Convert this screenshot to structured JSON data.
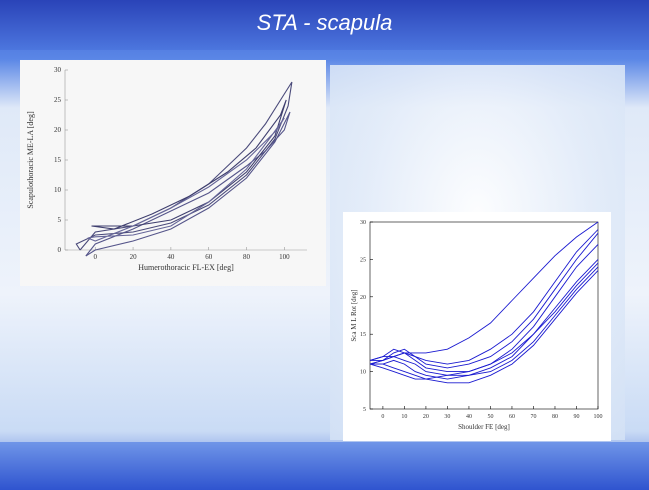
{
  "slide": {
    "title": "STA - scapula"
  },
  "chart_data": [
    {
      "type": "line",
      "x_label": "Humerothoracic FL-EX [deg]",
      "y_label": "Scapulothoracic ME-LA [deg]",
      "xlim": [
        -16,
        112
      ],
      "ylim": [
        0,
        30
      ],
      "xticks": [
        0,
        20,
        40,
        60,
        80,
        100
      ],
      "yticks": [
        0,
        5,
        10,
        15,
        20,
        25,
        30
      ],
      "series": [
        {
          "color": "#4a4a7a",
          "x": [
            -8,
            -10,
            0,
            20,
            40,
            60,
            80,
            95,
            102,
            104,
            100,
            90,
            80,
            60,
            40,
            20,
            0,
            -8
          ],
          "values": [
            0,
            1,
            2.5,
            3,
            4.5,
            7.5,
            12.5,
            18.5,
            24,
            28,
            26,
            21,
            17,
            11,
            7,
            4,
            3,
            0
          ]
        },
        {
          "color": "#55558a",
          "x": [
            -5,
            0,
            20,
            40,
            60,
            80,
            95,
            103,
            100,
            90,
            80,
            60,
            40,
            20,
            0,
            -5
          ],
          "values": [
            -1,
            0,
            1.5,
            3.5,
            7,
            12,
            18,
            23,
            20,
            16.5,
            14,
            9.5,
            6.5,
            3.5,
            1,
            -1
          ]
        },
        {
          "color": "#3e3e6e",
          "x": [
            -2,
            0,
            20,
            40,
            60,
            80,
            95,
            101,
            98,
            85,
            70,
            50,
            30,
            10,
            -2
          ],
          "values": [
            4,
            4,
            4,
            5,
            8,
            13,
            19,
            25,
            22.5,
            17,
            13,
            9,
            6,
            3.5,
            4
          ]
        },
        {
          "color": "#666699",
          "x": [
            -4,
            0,
            20,
            40,
            60,
            80,
            92,
            100,
            96,
            80,
            60,
            40,
            20,
            0,
            -4
          ],
          "values": [
            2,
            2.2,
            2.5,
            4,
            8,
            13.5,
            18.5,
            22,
            20,
            15,
            10.5,
            7,
            4,
            1.5,
            2
          ]
        }
      ]
    },
    {
      "type": "line",
      "x_label": "Shoulder FE [deg]",
      "y_label": "Sca M L Rot [deg]",
      "xlim": [
        -6,
        100
      ],
      "ylim": [
        5,
        30
      ],
      "xticks": [
        0,
        10,
        20,
        30,
        40,
        50,
        60,
        70,
        80,
        90,
        100
      ],
      "yticks": [
        5,
        10,
        15,
        20,
        25,
        30
      ],
      "series": [
        {
          "color": "#1a1ad0",
          "x": [
            -6,
            0,
            5,
            10,
            15,
            20,
            30,
            40,
            50,
            60,
            70,
            80,
            90,
            100
          ],
          "values": [
            11,
            11.5,
            12,
            12.5,
            12,
            11.5,
            11,
            11.5,
            13,
            15,
            18,
            22,
            26,
            29
          ]
        },
        {
          "color": "#1a1ad0",
          "x": [
            -6,
            0,
            5,
            10,
            15,
            20,
            30,
            40,
            50,
            60,
            70,
            80,
            90,
            100
          ],
          "values": [
            11,
            11,
            11.5,
            11,
            10,
            9.5,
            9,
            9.5,
            10.5,
            12,
            15,
            18.5,
            22,
            25
          ]
        },
        {
          "color": "#1a1ad0",
          "x": [
            -6,
            0,
            5,
            10,
            15,
            20,
            30,
            40,
            50,
            60,
            70,
            80,
            90,
            100
          ],
          "values": [
            11.5,
            12,
            13,
            12.5,
            11.5,
            10.5,
            10,
            10,
            11,
            13,
            16,
            20,
            24,
            27
          ]
        },
        {
          "color": "#1a1ad0",
          "x": [
            -6,
            0,
            5,
            10,
            15,
            20,
            30,
            40,
            50,
            60,
            70,
            80,
            90,
            100
          ],
          "values": [
            11,
            11,
            10.5,
            10,
            9.5,
            9,
            8.5,
            8.5,
            9.5,
            11,
            13.5,
            17,
            20.5,
            23.5
          ]
        },
        {
          "color": "#1a1ad0",
          "x": [
            -6,
            0,
            5,
            10,
            15,
            20,
            30,
            40,
            50,
            60,
            70,
            80,
            90,
            100
          ],
          "values": [
            11.5,
            11.5,
            12,
            12.5,
            12.5,
            12.5,
            13,
            14.5,
            16.5,
            19.5,
            22.5,
            25.5,
            28,
            30
          ]
        },
        {
          "color": "#1a1ad0",
          "x": [
            -6,
            0,
            5,
            10,
            15,
            20,
            30,
            40,
            50,
            60,
            70,
            80,
            90,
            100
          ],
          "values": [
            11,
            11.5,
            12.5,
            13,
            12,
            11,
            10.5,
            11,
            12,
            14,
            17,
            21,
            25,
            28.5
          ]
        },
        {
          "color": "#1a1ad0",
          "x": [
            -6,
            0,
            5,
            10,
            15,
            20,
            30,
            40,
            50,
            60,
            70,
            80,
            90,
            100
          ],
          "values": [
            11,
            10.5,
            10,
            9.5,
            9,
            9,
            9.5,
            10,
            11,
            12.5,
            15,
            18,
            21.5,
            24.5
          ]
        },
        {
          "color": "#1a1ad0",
          "x": [
            -6,
            0,
            5,
            10,
            15,
            20,
            30,
            40,
            50,
            60,
            70,
            80,
            90,
            100
          ],
          "values": [
            11.5,
            12,
            12,
            11.5,
            11,
            10,
            9.5,
            9.5,
            10,
            11.5,
            14,
            17.5,
            21,
            24
          ]
        }
      ]
    }
  ]
}
